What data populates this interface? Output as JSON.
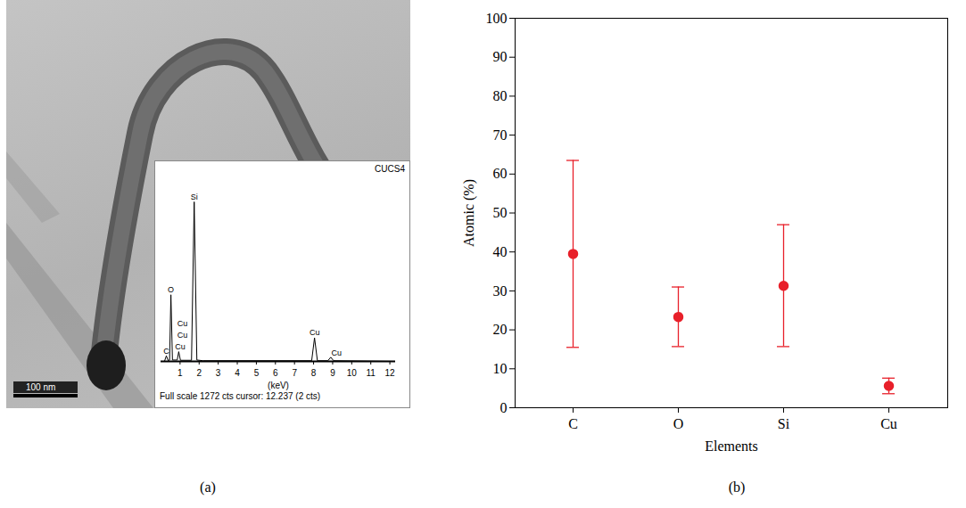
{
  "chart_data": [
    {
      "type": "spectrum",
      "panel_label": "(a)",
      "scale_bar": "100 nm",
      "title": "CUCS4",
      "xlabel": "(keV)",
      "caption": "Full scale 1272 cts cursor: 12.237 (2 cts)",
      "x": [
        0,
        0.18,
        0.28,
        0.38,
        0.45,
        0.52,
        0.6,
        0.85,
        0.93,
        1.02,
        1.6,
        1.74,
        1.88,
        2.2,
        7.9,
        8.05,
        8.2,
        8.75,
        8.9,
        9.05,
        12.3
      ],
      "values": [
        0,
        0,
        40,
        5,
        10,
        480,
        10,
        10,
        70,
        8,
        8,
        1150,
        10,
        5,
        5,
        170,
        5,
        5,
        30,
        5,
        0
      ],
      "xlim": [
        0,
        12.3
      ],
      "xticks": [
        1,
        2,
        3,
        4,
        5,
        6,
        7,
        8,
        9,
        10,
        11,
        12
      ],
      "ylim": [
        0,
        1272
      ],
      "tick_labels": "x",
      "grid": false,
      "color": "#000000",
      "annotations": [
        {
          "text": "C",
          "x": 0.28,
          "y": 45
        },
        {
          "text": "O",
          "x": 0.52,
          "y": 490
        },
        {
          "text": "Cu",
          "x": 1.12,
          "y": 250
        },
        {
          "text": "Cu",
          "x": 1.12,
          "y": 165
        },
        {
          "text": "Cu",
          "x": 1.0,
          "y": 80
        },
        {
          "text": "Si",
          "x": 1.74,
          "y": 1160
        },
        {
          "text": "Cu",
          "x": 8.05,
          "y": 180
        },
        {
          "text": "Cu",
          "x": 9.2,
          "y": 35
        }
      ]
    },
    {
      "type": "scatter",
      "panel_label": "(b)",
      "xlabel": "Elements",
      "ylabel": "Atomic (%)",
      "categories": [
        "C",
        "O",
        "Si",
        "Cu"
      ],
      "values": [
        39.5,
        23.3,
        31.3,
        5.6
      ],
      "error_lower": [
        15.5,
        15.7,
        15.7,
        3.6
      ],
      "error_upper": [
        63.5,
        31.0,
        47.0,
        7.6
      ],
      "ylim": [
        0,
        100
      ],
      "yticks": [
        0,
        10,
        20,
        30,
        40,
        50,
        60,
        70,
        80,
        90,
        100
      ],
      "color": "#e8202a",
      "marker": "circle",
      "grid": false
    }
  ]
}
